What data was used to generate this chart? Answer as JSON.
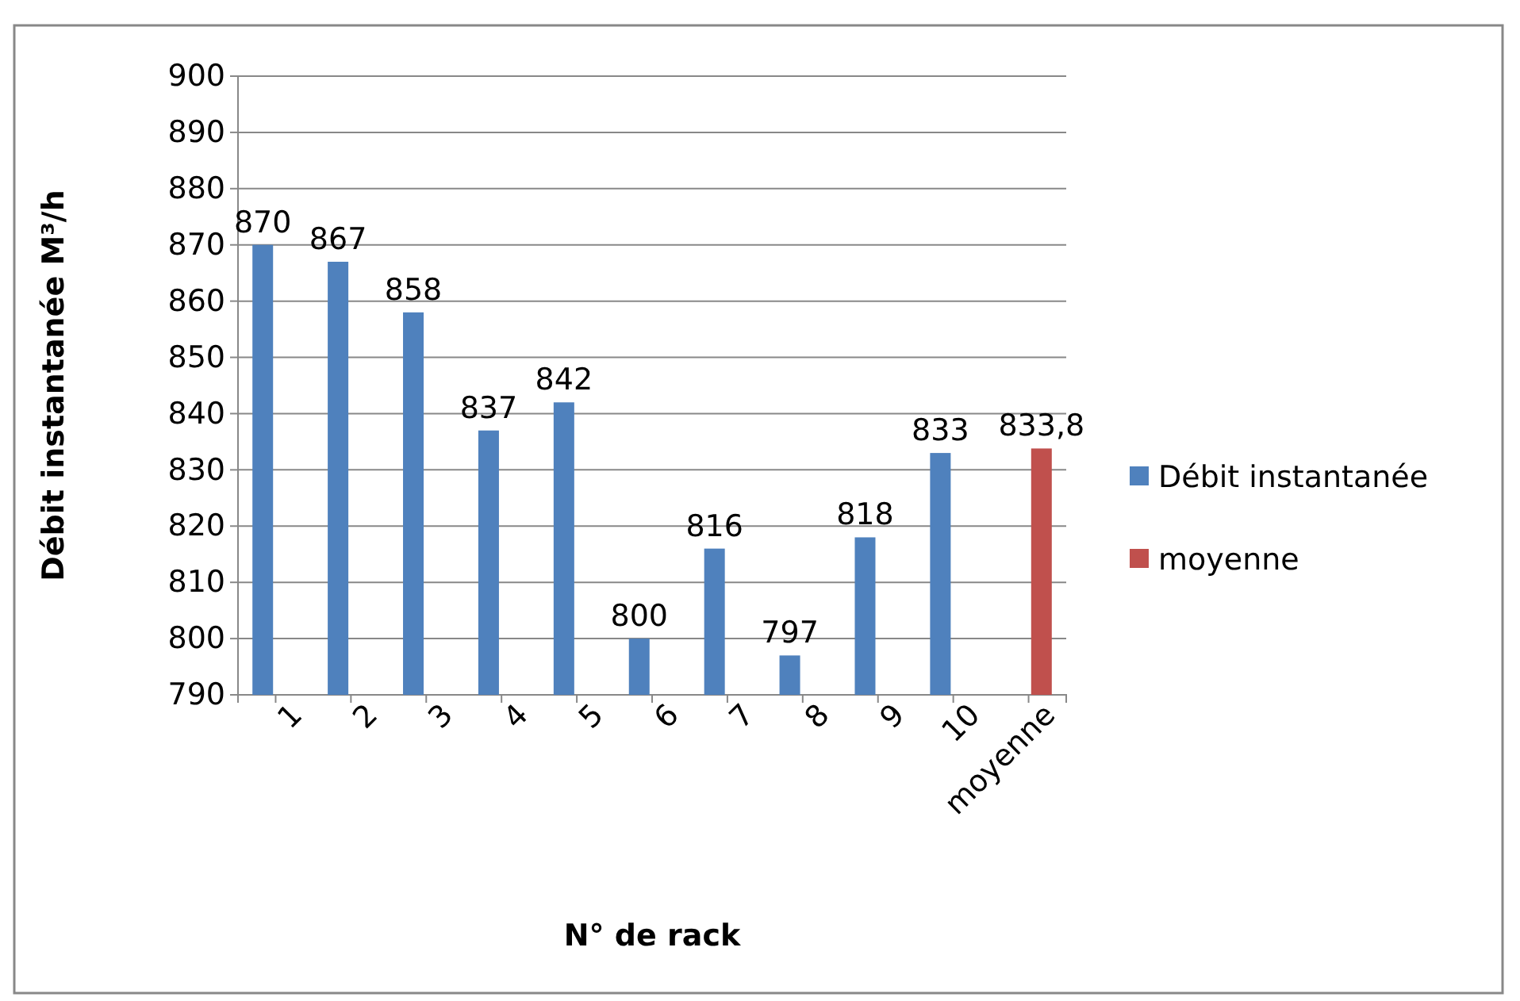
{
  "chart_data": {
    "type": "bar",
    "xlabel": "N° de rack",
    "ylabel": "Débit instantanée M³/h",
    "categories": [
      "1",
      "2",
      "3",
      "4",
      "5",
      "6",
      "7",
      "8",
      "9",
      "10",
      "moyenne"
    ],
    "series": [
      {
        "name": "Débit instantanée",
        "color": "#4f81bd",
        "values": [
          870,
          867,
          858,
          837,
          842,
          800,
          816,
          797,
          818,
          833,
          null
        ],
        "value_labels": [
          "870",
          "867",
          "858",
          "837",
          "842",
          "800",
          "816",
          "797",
          "818",
          "833",
          null
        ]
      },
      {
        "name": "moyenne",
        "color": "#c0504d",
        "values": [
          null,
          null,
          null,
          null,
          null,
          null,
          null,
          null,
          null,
          null,
          833.8
        ],
        "value_labels": [
          null,
          null,
          null,
          null,
          null,
          null,
          null,
          null,
          null,
          null,
          "833,8"
        ]
      }
    ],
    "ylim": [
      790,
      900
    ],
    "yticks": [
      790,
      800,
      810,
      820,
      830,
      840,
      850,
      860,
      870,
      880,
      890,
      900
    ],
    "grid": "y",
    "legend": "right"
  }
}
